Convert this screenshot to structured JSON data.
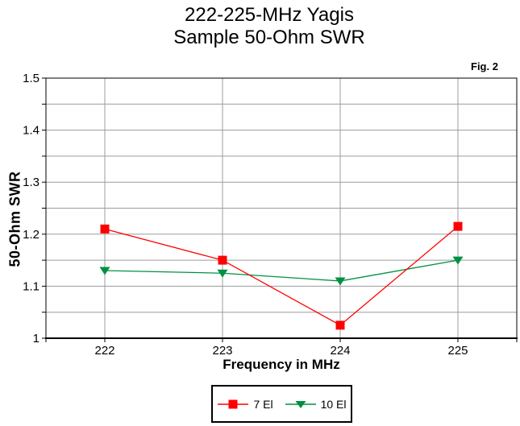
{
  "title": {
    "line1": "222-225-MHz Yagis",
    "line2": "Sample 50-Ohm SWR"
  },
  "fig_label": "Fig. 2",
  "chart_data": {
    "type": "line",
    "title": "222-225-MHz Yagis",
    "subtitle": "Sample 50-Ohm SWR",
    "xlabel": "Frequency in MHz",
    "ylabel": "50-Ohm SWR",
    "x": [
      222,
      223,
      224,
      225
    ],
    "x_tick_labels": [
      "222",
      "223",
      "224",
      "225"
    ],
    "xlim": [
      221.5,
      225.5
    ],
    "ylim": [
      1.0,
      1.5
    ],
    "y_major_ticks": [
      1.0,
      1.1,
      1.2,
      1.3,
      1.4,
      1.5
    ],
    "y_tick_labels": [
      "1",
      "1.1",
      "1.2",
      "1.3",
      "1.4",
      "1.5"
    ],
    "y_minor_step": 0.05,
    "grid": true,
    "grid_color": "#9c9c9c",
    "frame_color": "#000000",
    "legend_position": "bottom-center",
    "series": [
      {
        "name": "7 El",
        "color": "#ff0000",
        "marker": "square",
        "values": [
          1.21,
          1.15,
          1.025,
          1.215
        ]
      },
      {
        "name": "10 El",
        "color": "#009140",
        "marker": "triangle-down",
        "values": [
          1.13,
          1.125,
          1.11,
          1.15
        ]
      }
    ]
  }
}
